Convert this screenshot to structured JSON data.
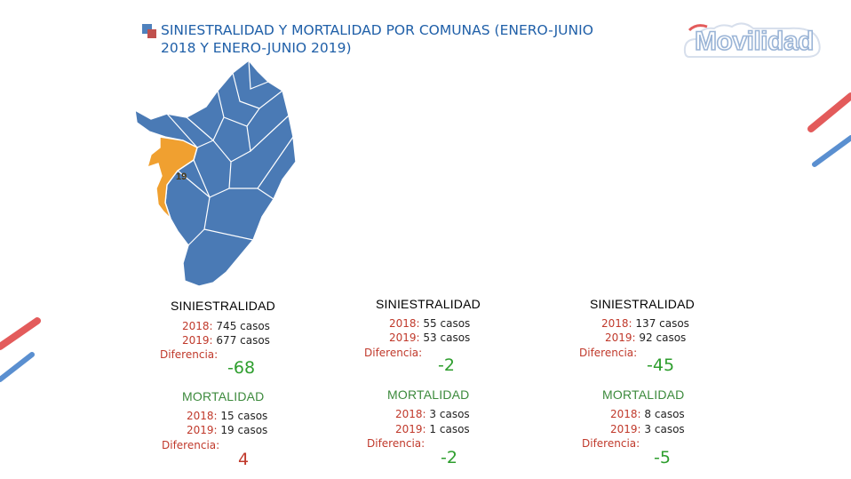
{
  "header": {
    "title": "SINIESTRALIDAD Y MORTALIDAD POR COMUNAS (ENERO-JUNIO 2018 Y ENERO-JUNIO 2019)",
    "logo_text": "Movilidad"
  },
  "map": {
    "highlight_label": "19",
    "highlight_color": "#f0a030",
    "base_color": "#4a7ab5"
  },
  "labels": {
    "siniestralidad": "SINIESTRALIDAD",
    "mortalidad": "MORTALIDAD",
    "year_2018": "2018:",
    "year_2019": "2019:",
    "diferencia": "Diferencia:"
  },
  "columns": [
    {
      "siniestralidad": {
        "y2018": "745 casos",
        "y2019": "677 casos",
        "diff": "-68",
        "diff_color": "#2e9e2e"
      },
      "mortalidad": {
        "y2018": "15 casos",
        "y2019": "19 casos",
        "diff": "4",
        "diff_color": "#c0392b"
      }
    },
    {
      "siniestralidad": {
        "y2018": "55 casos",
        "y2019": "53 casos",
        "diff": "-2",
        "diff_color": "#2e9e2e"
      },
      "mortalidad": {
        "y2018": "3 casos",
        "y2019": "1 casos",
        "diff": "-2",
        "diff_color": "#2e9e2e"
      }
    },
    {
      "siniestralidad": {
        "y2018": "137 casos",
        "y2019": "92 casos",
        "diff": "-45",
        "diff_color": "#2e9e2e"
      },
      "mortalidad": {
        "y2018": "8 casos",
        "y2019": "3 casos",
        "diff": "-5",
        "diff_color": "#2e9e2e"
      }
    }
  ]
}
